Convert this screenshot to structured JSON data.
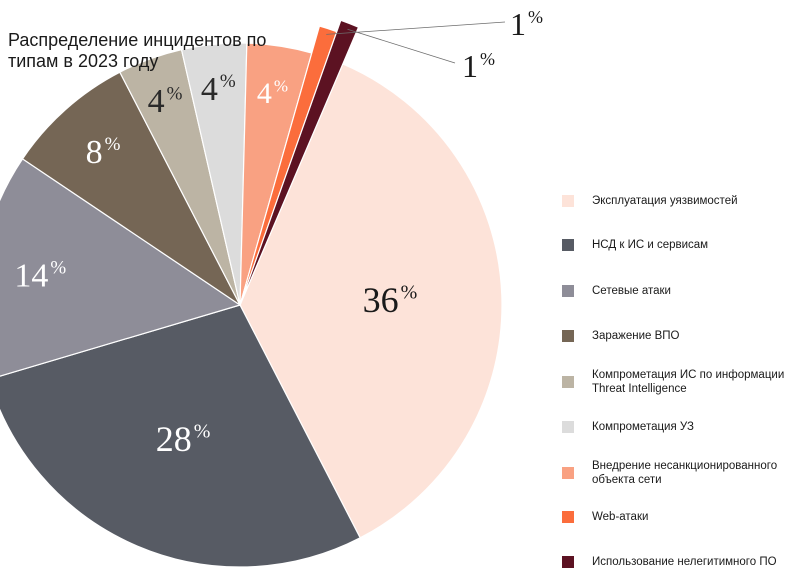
{
  "chart_data": {
    "type": "pie",
    "title": "Распределение инцидентов по типам в 2023 году",
    "series": [
      {
        "name": "Эксплуатация уязвимостей",
        "value": 36,
        "label": "36",
        "color": "#fde3d9"
      },
      {
        "name": "НСД к ИС и сервисам",
        "value": 28,
        "label": "28",
        "color": "#575b64"
      },
      {
        "name": "Сетевые атаки",
        "value": 14,
        "label": "14",
        "color": "#8e8d98"
      },
      {
        "name": "Заражение ВПО",
        "value": 8,
        "label": "8",
        "color": "#756655"
      },
      {
        "name": "Компрометация ИС по информации\nThreat Intelligence",
        "value": 4,
        "label": "4",
        "color": "#bcb4a4"
      },
      {
        "name": "Компрометация УЗ",
        "value": 4,
        "label": "4",
        "color": "#dcdcdc"
      },
      {
        "name": "Внедрение несанкционированного\nобъекта сети",
        "value": 4,
        "label": "4",
        "color": "#f9a182"
      },
      {
        "name": "Web-атаки",
        "value": 1,
        "label": "1",
        "color": "#fb6d3c"
      },
      {
        "name": "Использование нелегитимного ПО",
        "value": 1,
        "label": "1",
        "color": "#5c1222"
      }
    ],
    "percent_sign": "%",
    "legend_position": "right"
  }
}
